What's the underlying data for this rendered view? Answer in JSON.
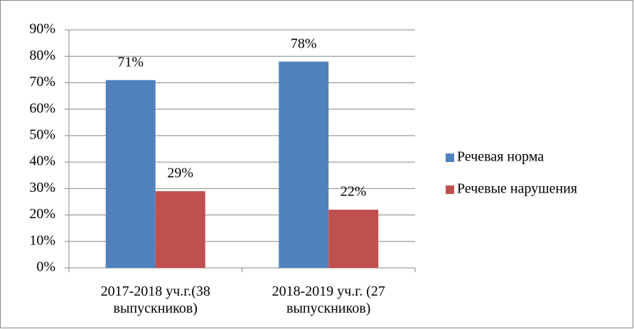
{
  "chart_data": {
    "type": "bar",
    "categories": [
      "2017-2018 уч.г.(38 выпускников)",
      "2018-2019 уч.г. (27 выпускников)"
    ],
    "series": [
      {
        "name": "Речевая норма",
        "color": "#4f81bd",
        "values": [
          71,
          78
        ],
        "value_labels": [
          "71%",
          "78%"
        ]
      },
      {
        "name": "Речевые нарушения",
        "color": "#c0504d",
        "values": [
          29,
          22
        ],
        "value_labels": [
          "29%",
          "22%"
        ]
      }
    ],
    "ylim": [
      0,
      90
    ],
    "yticks": [
      {
        "value": 0,
        "label": "0%"
      },
      {
        "value": 10,
        "label": "10%"
      },
      {
        "value": 20,
        "label": "20%"
      },
      {
        "value": 30,
        "label": "30%"
      },
      {
        "value": 40,
        "label": "40%"
      },
      {
        "value": 50,
        "label": "50%"
      },
      {
        "value": 60,
        "label": "60%"
      },
      {
        "value": 70,
        "label": "70%"
      },
      {
        "value": 80,
        "label": "80%"
      },
      {
        "value": 90,
        "label": "90%"
      }
    ],
    "grid": true,
    "legend": "right"
  }
}
